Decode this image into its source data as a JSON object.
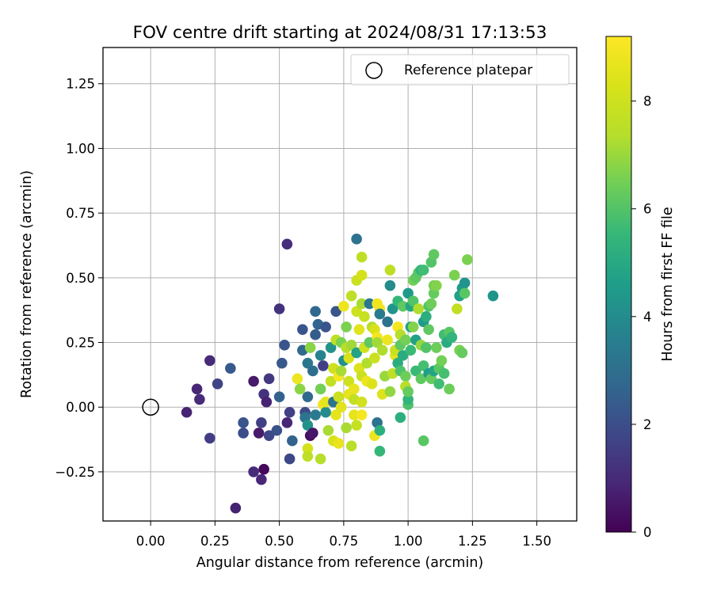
{
  "chart_data": {
    "type": "scatter",
    "title": "FOV centre drift starting at 2024/08/31 17:13:53",
    "xlabel": "Angular distance from reference (arcmin)",
    "ylabel": "Rotation from reference (arcmin)",
    "xlim": [
      -0.185,
      1.655
    ],
    "ylim": [
      -0.44,
      1.39
    ],
    "xticks": [
      0.0,
      0.25,
      0.5,
      0.75,
      1.0,
      1.25,
      1.5
    ],
    "xtick_labels": [
      "0.00",
      "0.25",
      "0.50",
      "0.75",
      "1.00",
      "1.25",
      "1.50"
    ],
    "yticks": [
      -0.25,
      0.0,
      0.25,
      0.5,
      0.75,
      1.0,
      1.25
    ],
    "ytick_labels": [
      "−0.25",
      "0.00",
      "0.25",
      "0.50",
      "0.75",
      "1.00",
      "1.25"
    ],
    "grid": true,
    "legend": {
      "placement": "upper right",
      "entries": [
        "Reference platepar"
      ]
    },
    "reference_point": {
      "x": 0.0,
      "y": 0.0,
      "marker": "open-circle",
      "label": "Reference platepar"
    },
    "colorbar": {
      "label": "Hours from first FF file",
      "colormap": "viridis",
      "range": [
        0,
        9.2
      ],
      "ticks": [
        0,
        2,
        4,
        6,
        8
      ],
      "tick_labels": [
        "0",
        "2",
        "4",
        "6",
        "8"
      ]
    },
    "points": [
      {
        "x": 0.14,
        "y": -0.02,
        "c": 0.8
      },
      {
        "x": 0.18,
        "y": 0.07,
        "c": 0.9
      },
      {
        "x": 0.19,
        "y": 0.03,
        "c": 1.0
      },
      {
        "x": 0.23,
        "y": 0.18,
        "c": 1.0
      },
      {
        "x": 0.23,
        "y": -0.12,
        "c": 1.5
      },
      {
        "x": 0.26,
        "y": 0.09,
        "c": 1.7
      },
      {
        "x": 0.31,
        "y": 0.15,
        "c": 2.3
      },
      {
        "x": 0.33,
        "y": -0.39,
        "c": 0.8
      },
      {
        "x": 0.36,
        "y": -0.06,
        "c": 2.2
      },
      {
        "x": 0.36,
        "y": -0.1,
        "c": 2.0
      },
      {
        "x": 0.4,
        "y": 0.1,
        "c": 0.6
      },
      {
        "x": 0.4,
        "y": -0.25,
        "c": 1.0
      },
      {
        "x": 0.42,
        "y": -0.1,
        "c": 0.6
      },
      {
        "x": 0.43,
        "y": -0.28,
        "c": 0.9
      },
      {
        "x": 0.43,
        "y": -0.06,
        "c": 1.6
      },
      {
        "x": 0.44,
        "y": 0.05,
        "c": 1.2
      },
      {
        "x": 0.44,
        "y": -0.24,
        "c": 0.2
      },
      {
        "x": 0.45,
        "y": 0.02,
        "c": 0.8
      },
      {
        "x": 0.46,
        "y": 0.11,
        "c": 1.4
      },
      {
        "x": 0.46,
        "y": -0.11,
        "c": 1.8
      },
      {
        "x": 0.49,
        "y": -0.09,
        "c": 2.1
      },
      {
        "x": 0.5,
        "y": 0.38,
        "c": 1.2
      },
      {
        "x": 0.5,
        "y": 0.04,
        "c": 2.6
      },
      {
        "x": 0.51,
        "y": 0.17,
        "c": 2.3
      },
      {
        "x": 0.52,
        "y": 0.24,
        "c": 2.2
      },
      {
        "x": 0.53,
        "y": -0.06,
        "c": 0.9
      },
      {
        "x": 0.53,
        "y": 0.63,
        "c": 1.1
      },
      {
        "x": 0.54,
        "y": -0.02,
        "c": 1.6
      },
      {
        "x": 0.54,
        "y": -0.2,
        "c": 1.8
      },
      {
        "x": 0.55,
        "y": -0.13,
        "c": 2.6
      },
      {
        "x": 0.57,
        "y": 0.11,
        "c": 8.8
      },
      {
        "x": 0.58,
        "y": 0.07,
        "c": 6.8
      },
      {
        "x": 0.59,
        "y": 0.22,
        "c": 2.8
      },
      {
        "x": 0.59,
        "y": 0.3,
        "c": 2.2
      },
      {
        "x": 0.6,
        "y": -0.02,
        "c": 1.9
      },
      {
        "x": 0.6,
        "y": -0.04,
        "c": 3.2
      },
      {
        "x": 0.61,
        "y": 0.17,
        "c": 3.3
      },
      {
        "x": 0.61,
        "y": -0.16,
        "c": 8.2
      },
      {
        "x": 0.61,
        "y": -0.19,
        "c": 7.6
      },
      {
        "x": 0.61,
        "y": 0.04,
        "c": 2.8
      },
      {
        "x": 0.61,
        "y": -0.07,
        "c": 4.2
      },
      {
        "x": 0.62,
        "y": -0.11,
        "c": 0.3
      },
      {
        "x": 0.62,
        "y": 0.23,
        "c": 6.8
      },
      {
        "x": 0.63,
        "y": -0.1,
        "c": 0.5
      },
      {
        "x": 0.63,
        "y": 0.14,
        "c": 3.0
      },
      {
        "x": 0.64,
        "y": 0.37,
        "c": 2.8
      },
      {
        "x": 0.64,
        "y": -0.03,
        "c": 3.4
      },
      {
        "x": 0.64,
        "y": 0.28,
        "c": 2.4
      },
      {
        "x": 0.65,
        "y": 0.32,
        "c": 2.7
      },
      {
        "x": 0.66,
        "y": -0.2,
        "c": 7.4
      },
      {
        "x": 0.66,
        "y": 0.07,
        "c": 6.5
      },
      {
        "x": 0.66,
        "y": 0.2,
        "c": 3.7
      },
      {
        "x": 0.67,
        "y": 0.16,
        "c": 1.6
      },
      {
        "x": 0.67,
        "y": 0.01,
        "c": 8.9
      },
      {
        "x": 0.68,
        "y": -0.02,
        "c": 4.0
      },
      {
        "x": 0.68,
        "y": 0.31,
        "c": 2.2
      },
      {
        "x": 0.68,
        "y": 0.02,
        "c": 8.6
      },
      {
        "x": 0.69,
        "y": -0.09,
        "c": 7.2
      },
      {
        "x": 0.7,
        "y": 0.1,
        "c": 7.7
      },
      {
        "x": 0.7,
        "y": 0.23,
        "c": 4.2
      },
      {
        "x": 0.71,
        "y": 0.02,
        "c": 3.1
      },
      {
        "x": 0.71,
        "y": -0.13,
        "c": 8.3
      },
      {
        "x": 0.71,
        "y": 0.15,
        "c": 8.0
      },
      {
        "x": 0.72,
        "y": 0.37,
        "c": 2.2
      },
      {
        "x": 0.72,
        "y": 0.26,
        "c": 7.6
      },
      {
        "x": 0.72,
        "y": -0.03,
        "c": 8.6
      },
      {
        "x": 0.73,
        "y": 0.12,
        "c": 9.0
      },
      {
        "x": 0.73,
        "y": 0.04,
        "c": 7.9
      },
      {
        "x": 0.73,
        "y": -0.14,
        "c": 8.7
      },
      {
        "x": 0.74,
        "y": 0.14,
        "c": 7.2
      },
      {
        "x": 0.74,
        "y": 0.0,
        "c": 8.5
      },
      {
        "x": 0.74,
        "y": 0.25,
        "c": 6.6
      },
      {
        "x": 0.75,
        "y": 0.39,
        "c": 8.8
      },
      {
        "x": 0.75,
        "y": 0.18,
        "c": 4.2
      },
      {
        "x": 0.76,
        "y": -0.08,
        "c": 7.2
      },
      {
        "x": 0.76,
        "y": 0.23,
        "c": 7.4
      },
      {
        "x": 0.76,
        "y": 0.31,
        "c": 6.6
      },
      {
        "x": 0.77,
        "y": 0.05,
        "c": 8.6
      },
      {
        "x": 0.77,
        "y": 0.1,
        "c": 8.0
      },
      {
        "x": 0.77,
        "y": 0.19,
        "c": 8.3
      },
      {
        "x": 0.78,
        "y": -0.15,
        "c": 7.5
      },
      {
        "x": 0.78,
        "y": 0.43,
        "c": 7.6
      },
      {
        "x": 0.78,
        "y": 0.24,
        "c": 7.1
      },
      {
        "x": 0.79,
        "y": 0.07,
        "c": 8.7
      },
      {
        "x": 0.79,
        "y": -0.03,
        "c": 8.6
      },
      {
        "x": 0.79,
        "y": 0.03,
        "c": 7.7
      },
      {
        "x": 0.8,
        "y": 0.65,
        "c": 3.1
      },
      {
        "x": 0.8,
        "y": 0.49,
        "c": 7.9
      },
      {
        "x": 0.8,
        "y": 0.37,
        "c": 8.0
      },
      {
        "x": 0.8,
        "y": 0.21,
        "c": 4.8
      },
      {
        "x": 0.8,
        "y": -0.07,
        "c": 7.8
      },
      {
        "x": 0.81,
        "y": 0.3,
        "c": 8.5
      },
      {
        "x": 0.81,
        "y": 0.15,
        "c": 8.4
      },
      {
        "x": 0.82,
        "y": 0.58,
        "c": 7.6
      },
      {
        "x": 0.82,
        "y": 0.51,
        "c": 8.2
      },
      {
        "x": 0.82,
        "y": 0.4,
        "c": 7.2
      },
      {
        "x": 0.82,
        "y": 0.12,
        "c": 7.9
      },
      {
        "x": 0.82,
        "y": 0.02,
        "c": 8.1
      },
      {
        "x": 0.82,
        "y": -0.03,
        "c": 9.0
      },
      {
        "x": 0.83,
        "y": 0.23,
        "c": 8.0
      },
      {
        "x": 0.83,
        "y": 0.35,
        "c": 7.8
      },
      {
        "x": 0.84,
        "y": 0.1,
        "c": 8.8
      },
      {
        "x": 0.84,
        "y": 0.17,
        "c": 7.3
      },
      {
        "x": 0.85,
        "y": 0.4,
        "c": 3.3
      },
      {
        "x": 0.85,
        "y": 0.25,
        "c": 6.2
      },
      {
        "x": 0.86,
        "y": 0.09,
        "c": 8.4
      },
      {
        "x": 0.86,
        "y": 0.31,
        "c": 7.4
      },
      {
        "x": 0.87,
        "y": 0.19,
        "c": 7.9
      },
      {
        "x": 0.87,
        "y": 0.3,
        "c": 8.3
      },
      {
        "x": 0.87,
        "y": -0.11,
        "c": 8.8
      },
      {
        "x": 0.88,
        "y": 0.27,
        "c": 9.0
      },
      {
        "x": 0.88,
        "y": 0.4,
        "c": 8.9
      },
      {
        "x": 0.88,
        "y": -0.06,
        "c": 3.1
      },
      {
        "x": 0.88,
        "y": 0.25,
        "c": 7.1
      },
      {
        "x": 0.89,
        "y": 0.38,
        "c": 8.9
      },
      {
        "x": 0.89,
        "y": -0.09,
        "c": 5.2
      },
      {
        "x": 0.89,
        "y": -0.17,
        "c": 5.5
      },
      {
        "x": 0.89,
        "y": 0.36,
        "c": 3.4
      },
      {
        "x": 0.9,
        "y": 0.05,
        "c": 8.4
      },
      {
        "x": 0.9,
        "y": 0.22,
        "c": 7.3
      },
      {
        "x": 0.91,
        "y": 0.12,
        "c": 7.0
      },
      {
        "x": 0.92,
        "y": 0.33,
        "c": 3.2
      },
      {
        "x": 0.92,
        "y": 0.26,
        "c": 8.8
      },
      {
        "x": 0.93,
        "y": 0.53,
        "c": 7.6
      },
      {
        "x": 0.93,
        "y": 0.47,
        "c": 4.0
      },
      {
        "x": 0.93,
        "y": 0.06,
        "c": 6.9
      },
      {
        "x": 0.94,
        "y": 0.38,
        "c": 4.3
      },
      {
        "x": 0.94,
        "y": 0.13,
        "c": 7.6
      },
      {
        "x": 0.95,
        "y": 0.2,
        "c": 8.5
      },
      {
        "x": 0.95,
        "y": 0.22,
        "c": 7.9
      },
      {
        "x": 0.96,
        "y": 0.31,
        "c": 9.0
      },
      {
        "x": 0.96,
        "y": 0.41,
        "c": 5.5
      },
      {
        "x": 0.96,
        "y": 0.17,
        "c": 5.1
      },
      {
        "x": 0.97,
        "y": 0.28,
        "c": 7.4
      },
      {
        "x": 0.97,
        "y": 0.24,
        "c": 6.2
      },
      {
        "x": 0.97,
        "y": 0.14,
        "c": 5.9
      },
      {
        "x": 0.97,
        "y": -0.04,
        "c": 5.2
      },
      {
        "x": 0.98,
        "y": 0.39,
        "c": 6.2
      },
      {
        "x": 0.98,
        "y": 0.2,
        "c": 5.1
      },
      {
        "x": 0.99,
        "y": 0.12,
        "c": 6.4
      },
      {
        "x": 0.99,
        "y": 0.08,
        "c": 7.5
      },
      {
        "x": 0.99,
        "y": 0.26,
        "c": 6.5
      },
      {
        "x": 1.0,
        "y": 0.44,
        "c": 4.5
      },
      {
        "x": 1.0,
        "y": 0.01,
        "c": 5.9
      },
      {
        "x": 1.0,
        "y": 0.03,
        "c": 5.4
      },
      {
        "x": 1.0,
        "y": 0.06,
        "c": 6.3
      },
      {
        "x": 1.01,
        "y": 0.31,
        "c": 4.7
      },
      {
        "x": 1.01,
        "y": 0.22,
        "c": 5.6
      },
      {
        "x": 1.01,
        "y": 0.39,
        "c": 4.9
      },
      {
        "x": 1.02,
        "y": 0.41,
        "c": 6.0
      },
      {
        "x": 1.02,
        "y": 0.31,
        "c": 6.7
      },
      {
        "x": 1.02,
        "y": 0.49,
        "c": 6.5
      },
      {
        "x": 1.03,
        "y": 0.5,
        "c": 6.2
      },
      {
        "x": 1.03,
        "y": 0.26,
        "c": 4.7
      },
      {
        "x": 1.03,
        "y": 0.14,
        "c": 5.6
      },
      {
        "x": 1.04,
        "y": 0.38,
        "c": 7.3
      },
      {
        "x": 1.04,
        "y": 0.52,
        "c": 6.1
      },
      {
        "x": 1.05,
        "y": 0.24,
        "c": 6.9
      },
      {
        "x": 1.05,
        "y": 0.11,
        "c": 6.2
      },
      {
        "x": 1.05,
        "y": 0.53,
        "c": 5.4
      },
      {
        "x": 1.06,
        "y": 0.33,
        "c": 4.5
      },
      {
        "x": 1.06,
        "y": 0.16,
        "c": 5.8
      },
      {
        "x": 1.06,
        "y": -0.13,
        "c": 6.1
      },
      {
        "x": 1.06,
        "y": 0.53,
        "c": 5.7
      },
      {
        "x": 1.07,
        "y": 0.35,
        "c": 5.2
      },
      {
        "x": 1.07,
        "y": 0.23,
        "c": 6.0
      },
      {
        "x": 1.08,
        "y": 0.13,
        "c": 4.6
      },
      {
        "x": 1.08,
        "y": 0.3,
        "c": 6.2
      },
      {
        "x": 1.08,
        "y": 0.39,
        "c": 6.0
      },
      {
        "x": 1.09,
        "y": 0.4,
        "c": 6.4
      },
      {
        "x": 1.09,
        "y": 0.11,
        "c": 6.3
      },
      {
        "x": 1.09,
        "y": 0.56,
        "c": 6.0
      },
      {
        "x": 1.1,
        "y": 0.14,
        "c": 4.8
      },
      {
        "x": 1.1,
        "y": 0.44,
        "c": 6.3
      },
      {
        "x": 1.1,
        "y": 0.59,
        "c": 6.2
      },
      {
        "x": 1.1,
        "y": 0.47,
        "c": 6.5
      },
      {
        "x": 1.11,
        "y": 0.23,
        "c": 6.4
      },
      {
        "x": 1.11,
        "y": 0.47,
        "c": 6.7
      },
      {
        "x": 1.12,
        "y": 0.09,
        "c": 5.7
      },
      {
        "x": 1.12,
        "y": 0.15,
        "c": 6.1
      },
      {
        "x": 1.13,
        "y": 0.18,
        "c": 6.5
      },
      {
        "x": 1.14,
        "y": 0.13,
        "c": 5.8
      },
      {
        "x": 1.14,
        "y": 0.28,
        "c": 5.7
      },
      {
        "x": 1.15,
        "y": 0.25,
        "c": 5.1
      },
      {
        "x": 1.16,
        "y": 0.29,
        "c": 6.1
      },
      {
        "x": 1.16,
        "y": 0.07,
        "c": 6.4
      },
      {
        "x": 1.17,
        "y": 0.27,
        "c": 5.4
      },
      {
        "x": 1.18,
        "y": 0.51,
        "c": 6.6
      },
      {
        "x": 1.19,
        "y": 0.38,
        "c": 7.7
      },
      {
        "x": 1.2,
        "y": 0.22,
        "c": 6.6
      },
      {
        "x": 1.2,
        "y": 0.43,
        "c": 4.7
      },
      {
        "x": 1.21,
        "y": 0.46,
        "c": 4.5
      },
      {
        "x": 1.21,
        "y": 0.21,
        "c": 6.3
      },
      {
        "x": 1.22,
        "y": 0.48,
        "c": 4.3
      },
      {
        "x": 1.22,
        "y": 0.44,
        "c": 6.1
      },
      {
        "x": 1.23,
        "y": 0.57,
        "c": 6.6
      },
      {
        "x": 1.33,
        "y": 0.43,
        "c": 4.3
      }
    ]
  }
}
